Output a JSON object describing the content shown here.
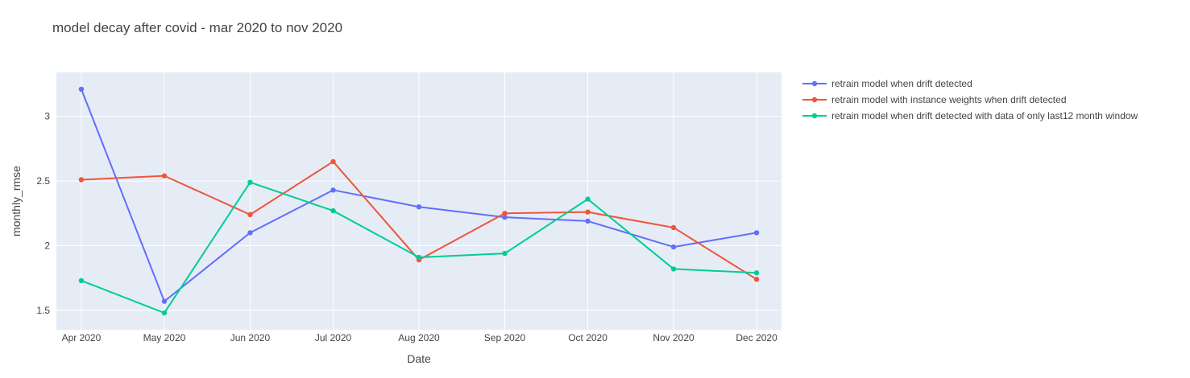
{
  "chart_data": {
    "type": "line",
    "title": "model decay after covid - mar 2020 to nov 2020",
    "xlabel": "Date",
    "ylabel": "monthly_rmse",
    "x": [
      "Apr 2020",
      "May 2020",
      "Jun 2020",
      "Jul 2020",
      "Aug 2020",
      "Sep 2020",
      "Oct 2020",
      "Nov 2020",
      "Dec 2020"
    ],
    "x_dates": [
      "2020-03-31",
      "2020-04-30",
      "2020-05-31",
      "2020-06-30",
      "2020-07-31",
      "2020-08-31",
      "2020-09-30",
      "2020-10-31",
      "2020-11-30"
    ],
    "xlim": [
      "2020-03-22",
      "2020-12-09"
    ],
    "ylim": [
      1.35,
      3.34
    ],
    "yticks": [
      1.5,
      2,
      2.5,
      3
    ],
    "ytick_labels": [
      "1.5",
      "2",
      "2.5",
      "3"
    ],
    "grid": true,
    "legend_position": "right",
    "plot_background": "#E5ECF6",
    "series": [
      {
        "name": "retrain model when drift detected",
        "color": "#636EFA",
        "values": [
          3.21,
          1.57,
          2.1,
          2.43,
          2.3,
          2.22,
          2.19,
          1.99,
          2.1
        ]
      },
      {
        "name": "retrain model with instance weights when drift detected",
        "color": "#EF553B",
        "values": [
          2.51,
          2.54,
          2.24,
          2.65,
          1.89,
          2.25,
          2.26,
          2.14,
          1.74
        ]
      },
      {
        "name": "retrain model when drift detected with data of only last12 month window",
        "color": "#00CC96",
        "values": [
          1.73,
          1.48,
          2.49,
          2.27,
          1.91,
          1.94,
          2.36,
          1.82,
          1.79
        ]
      }
    ]
  }
}
